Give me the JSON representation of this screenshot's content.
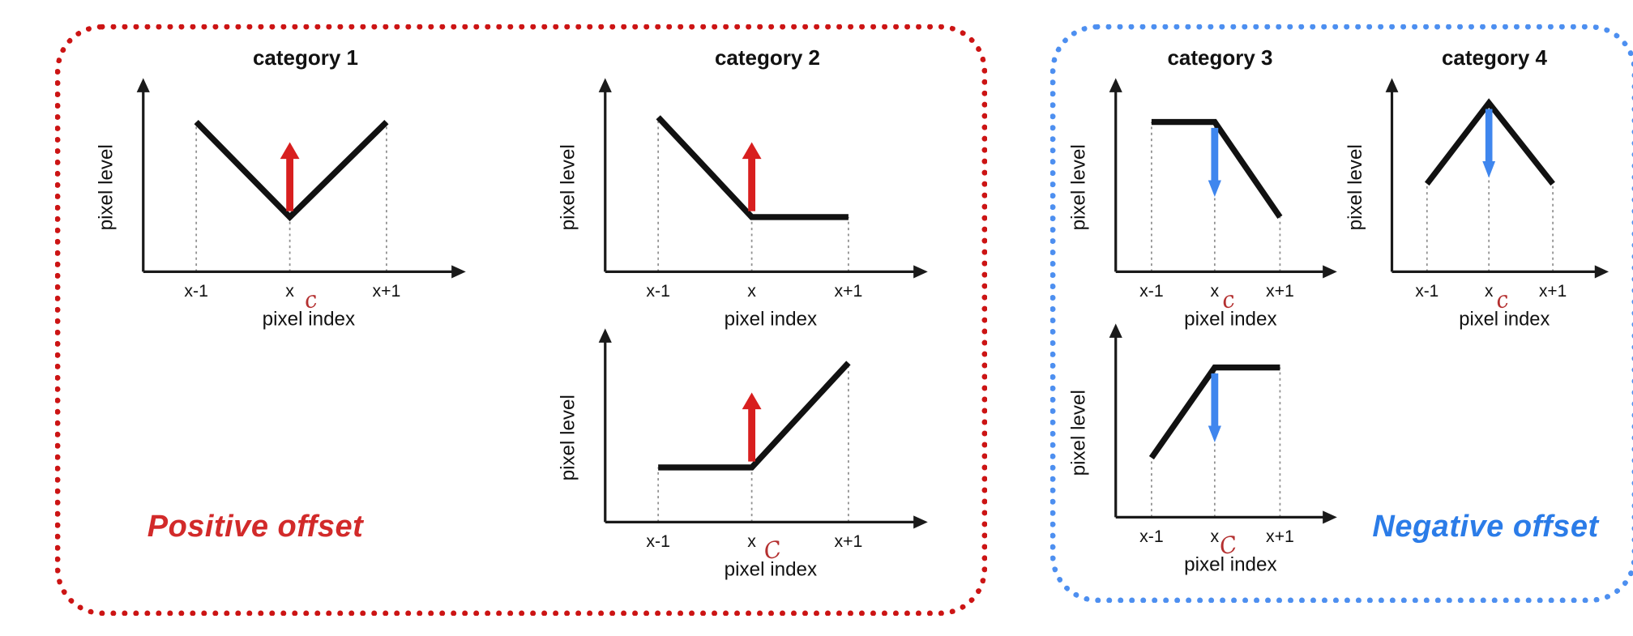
{
  "figure": {
    "background": "#ffffff",
    "description": "Six schematic pixel-level vs pixel-index plots grouped into positive-offset (categories 1-2) and negative-offset (categories 3-4) cases"
  },
  "groups": [
    {
      "id": "positive-offset",
      "label": "Positive offset",
      "border_color": "#cc1414",
      "label_color": "#d22a2a",
      "offset_direction": "up"
    },
    {
      "id": "negative-offset",
      "label": "Negative offset",
      "border_color": "#4d8ff0",
      "label_color": "#2b7ce8",
      "offset_direction": "down"
    }
  ],
  "charts": [
    {
      "id": "category-1",
      "group": "positive-offset",
      "title": "category 1",
      "ylabel": "pixel level",
      "xlabel": "pixel index",
      "ticks": [
        "x-1",
        "x",
        "x+1"
      ],
      "shape": "valley",
      "shape_description": "high at x-1, local minimum at x, high at x+1",
      "levels": [
        1,
        0,
        1
      ],
      "arrow": "up",
      "arrow_color": "#d81f1f",
      "annotation": "c",
      "annotation_color": "#b43030"
    },
    {
      "id": "category-2",
      "group": "positive-offset",
      "title": "category 2",
      "ylabel": "pixel level",
      "xlabel": "pixel index",
      "ticks": [
        "x-1",
        "x",
        "x+1"
      ],
      "shape": "falling-then-flat",
      "shape_description": "falls from x-1 to x, flat from x to x+1",
      "levels": [
        1.05,
        0,
        0
      ],
      "arrow": "up",
      "arrow_color": "#d81f1f",
      "annotation": "",
      "annotation_color": "#b43030"
    },
    {
      "id": "positive-flat-then-rising",
      "group": "positive-offset",
      "title": "",
      "ylabel": "pixel level",
      "xlabel": "pixel index",
      "ticks": [
        "x-1",
        "x",
        "x+1"
      ],
      "shape": "flat-then-rising",
      "shape_description": "flat from x-1 to x, rises from x to x+1",
      "levels": [
        0,
        0,
        1.1
      ],
      "arrow": "up",
      "arrow_color": "#d81f1f",
      "annotation": "C",
      "annotation_color": "#b43030"
    },
    {
      "id": "category-3",
      "group": "negative-offset",
      "title": "category 3",
      "ylabel": "pixel level",
      "xlabel": "pixel index",
      "ticks": [
        "x-1",
        "x",
        "x+1"
      ],
      "shape": "flat-then-falling",
      "shape_description": "flat from x-1 to x, falls from x to x+1",
      "levels": [
        1,
        1,
        0
      ],
      "arrow": "down",
      "arrow_color": "#3f86ee",
      "annotation": "c",
      "annotation_color": "#b43030"
    },
    {
      "id": "category-4",
      "group": "negative-offset",
      "title": "category 4",
      "ylabel": "pixel level",
      "xlabel": "pixel index",
      "ticks": [
        "x-1",
        "x",
        "x+1"
      ],
      "shape": "peak",
      "shape_description": "mid level at x-1, local maximum at x, mid level at x+1",
      "levels": [
        0.35,
        1.2,
        0.35
      ],
      "arrow": "down",
      "arrow_color": "#3f86ee",
      "annotation": "c",
      "annotation_color": "#b43030"
    },
    {
      "id": "negative-rising-then-flat",
      "group": "negative-offset",
      "title": "",
      "ylabel": "pixel level",
      "xlabel": "pixel index",
      "ticks": [
        "x-1",
        "x",
        "x+1"
      ],
      "shape": "rising-then-flat",
      "shape_description": "rises from x-1 to x, flat from x to x+1",
      "levels": [
        0.05,
        1,
        1
      ],
      "arrow": "down",
      "arrow_color": "#3f86ee",
      "annotation": "C",
      "annotation_color": "#b43030"
    }
  ]
}
